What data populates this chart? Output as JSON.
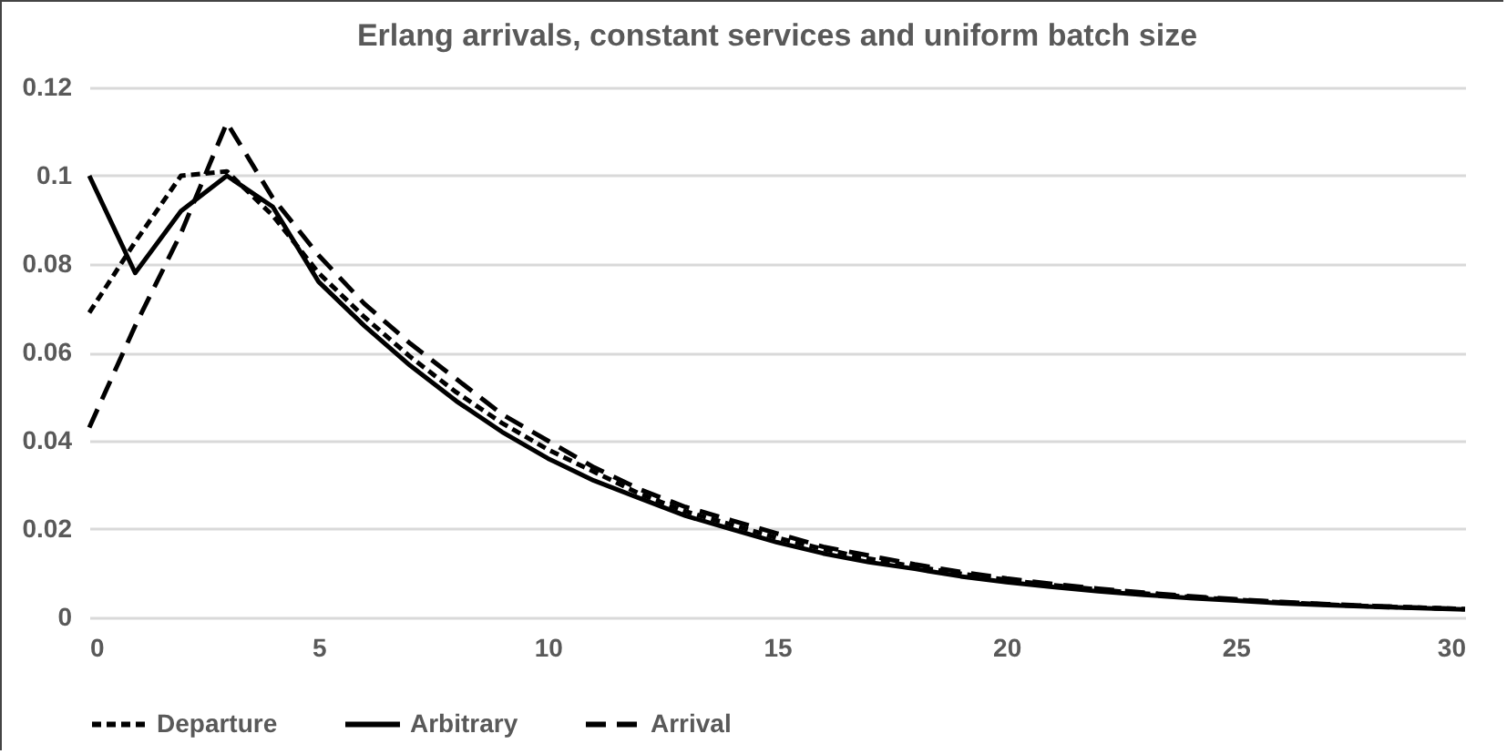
{
  "chart_data": {
    "type": "line",
    "title": "Erlang arrivals, constant services and uniform batch size",
    "x": [
      0,
      1,
      2,
      3,
      4,
      5,
      6,
      7,
      8,
      9,
      10,
      11,
      12,
      13,
      14,
      15,
      16,
      17,
      18,
      19,
      20,
      21,
      22,
      23,
      24,
      25,
      26,
      27,
      28,
      29,
      30
    ],
    "series": [
      {
        "name": "Departure",
        "color": "#000000",
        "line_style": "dotted",
        "values": [
          0.069,
          0.085,
          0.1,
          0.101,
          0.091,
          0.078,
          0.068,
          0.059,
          0.051,
          0.044,
          0.038,
          0.033,
          0.028,
          0.024,
          0.021,
          0.018,
          0.0155,
          0.0133,
          0.0115,
          0.0099,
          0.0085,
          0.0073,
          0.0063,
          0.0054,
          0.0046,
          0.004,
          0.0034,
          0.0029,
          0.0025,
          0.0022,
          0.0019
        ]
      },
      {
        "name": "Arbitrary",
        "color": "#000000",
        "line_style": "solid",
        "values": [
          0.1,
          0.078,
          0.092,
          0.1,
          0.093,
          0.076,
          0.066,
          0.057,
          0.049,
          0.042,
          0.036,
          0.031,
          0.027,
          0.023,
          0.02,
          0.017,
          0.0145,
          0.0125,
          0.011,
          0.0093,
          0.008,
          0.0069,
          0.0059,
          0.0051,
          0.0044,
          0.0038,
          0.0032,
          0.0028,
          0.0024,
          0.0021,
          0.0018
        ]
      },
      {
        "name": "Arrival",
        "color": "#000000",
        "line_style": "dashed",
        "values": [
          0.043,
          0.066,
          0.087,
          0.112,
          0.095,
          0.082,
          0.071,
          0.062,
          0.054,
          0.046,
          0.04,
          0.034,
          0.029,
          0.025,
          0.022,
          0.019,
          0.016,
          0.014,
          0.012,
          0.0103,
          0.0088,
          0.0076,
          0.0065,
          0.0056,
          0.0048,
          0.0041,
          0.0035,
          0.003,
          0.0026,
          0.0022,
          0.0019
        ]
      }
    ],
    "xlim": [
      0,
      30
    ],
    "xticks": [
      0,
      5,
      10,
      15,
      20,
      25,
      30
    ],
    "ylim": [
      0,
      0.12
    ],
    "yticks": [
      0,
      0.02,
      0.04,
      0.06,
      0.08,
      0.1,
      0.12
    ],
    "grid": "y",
    "legend": "bottom",
    "marker": "none"
  }
}
